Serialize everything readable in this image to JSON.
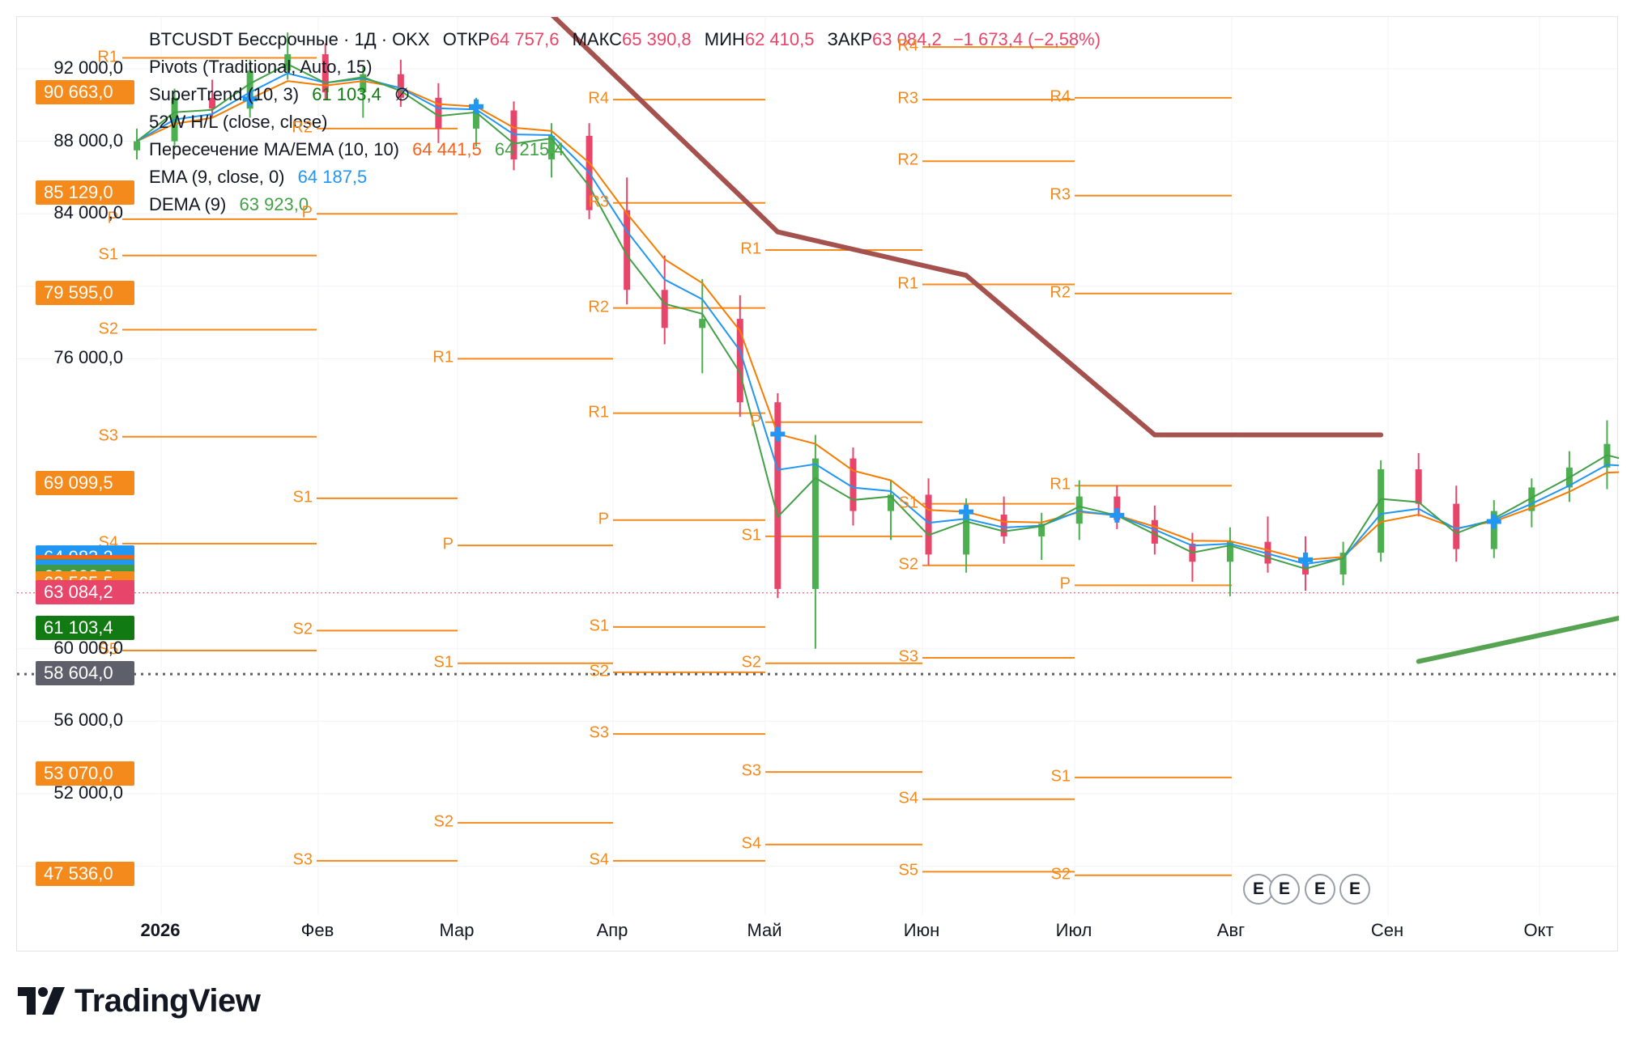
{
  "legend": {
    "symbol": "BTCUSDT Бессрочные · 1Д · OKX",
    "open_label": "ОТКР",
    "open_value": "64 757,6",
    "high_label": "МАКС",
    "high_value": "65 390,8",
    "low_label": "МИН",
    "low_value": "62 410,5",
    "close_label": "ЗАКР",
    "close_value": "63 084,2",
    "change": "−1 673,4 (−2,58%)",
    "pivots": "Pivots (Traditional, Auto, 15)",
    "supertrend": "SuperTrend (10, 3)",
    "supertrend_value": "61 103,4",
    "supertrend_extra": "∅",
    "hl52": "52W H/L (close, close)",
    "cross": "Пересечение MA/EMA (10, 10)",
    "cross_v1": "64 441,5",
    "cross_v2": "64 215,4",
    "ema": "EMA (9, close, 0)",
    "ema_value": "64 187,5",
    "dema": "DEMA (9)",
    "dema_value": "63 923,0"
  },
  "colors": {
    "up": "#4caf50",
    "down": "#e8456b",
    "pivot": "#f48a1c",
    "supertrend_up": "#56a352",
    "supertrend_down": "#a5524f",
    "ema": "#2196f3",
    "dema": "#43a047",
    "ma_cross": "#f57c00",
    "cross_marker": "#2196f3",
    "text": "#131722"
  },
  "chart_data": {
    "type": "candlestick",
    "symbol": "BTCUSDT",
    "timeframe": "1D",
    "ylim": [
      46000,
      94000
    ],
    "y_ticks": [
      "92 000,0",
      "88 000,0",
      "84 000,0",
      "76 000,0",
      "60 000,0",
      "56 000,0",
      "52 000,0"
    ],
    "x_ticks": [
      "2026",
      "Фев",
      "Мар",
      "Апр",
      "Май",
      "Июн",
      "Июл",
      "Авг",
      "Сен",
      "Окт"
    ],
    "price_tags": [
      {
        "label": "90 663,0",
        "value": 90663,
        "color": "#f48a1c"
      },
      {
        "label": "85 129,0",
        "value": 85129,
        "color": "#f48a1c"
      },
      {
        "label": "79 595,0",
        "value": 79595,
        "color": "#f48a1c"
      },
      {
        "label": "69 099,5",
        "value": 69099.5,
        "color": "#f48a1c"
      },
      {
        "label": "64 983,2",
        "value": 64983.2,
        "color": "#2196f3"
      },
      {
        "label": "64 441,5",
        "value": 64441.5,
        "color": "#f4621c"
      },
      {
        "label": "64 215,4",
        "value": 64215.4,
        "color": "#43a047"
      },
      {
        "label": "64 187,5",
        "value": 64187.5,
        "color": "#2196f3"
      },
      {
        "label": "63 923,0",
        "value": 63923,
        "color": "#3f9a45"
      },
      {
        "label": "63 565,5",
        "value": 63565.5,
        "color": "#f48a1c"
      },
      {
        "label": "63 084,2",
        "value": 63084.2,
        "color": "#e8456b"
      },
      {
        "label": "61 103,4",
        "value": 61103.4,
        "color": "#127a12"
      },
      {
        "label": "58 604,0",
        "value": 58604,
        "color": "#5d606b"
      },
      {
        "label": "53 070,0",
        "value": 53070,
        "color": "#f48a1c"
      },
      {
        "label": "47 536,0",
        "value": 47536,
        "color": "#f48a1c"
      }
    ],
    "last_close": 63084.2,
    "low_52w": 58604,
    "pivot_periods": [
      {
        "month": "Янв",
        "levels": [
          {
            "name": "R1",
            "value": 92600
          },
          {
            "name": "P",
            "value": 83700
          },
          {
            "name": "S1",
            "value": 81700
          },
          {
            "name": "S2",
            "value": 77600
          },
          {
            "name": "S3",
            "value": 71700
          },
          {
            "name": "S4",
            "value": 65800
          },
          {
            "name": "S5",
            "value": 59900
          }
        ]
      },
      {
        "month": "Фев",
        "levels": [
          {
            "name": "R2",
            "value": 88700
          },
          {
            "name": "P",
            "value": 84000
          },
          {
            "name": "S1",
            "value": 68300
          },
          {
            "name": "S2",
            "value": 61000
          },
          {
            "name": "S3",
            "value": 48300
          }
        ]
      },
      {
        "month": "Мар",
        "levels": [
          {
            "name": "R1",
            "value": 76000
          },
          {
            "name": "P",
            "value": 65700
          },
          {
            "name": "S1",
            "value": 59200
          },
          {
            "name": "S2",
            "value": 50400
          }
        ]
      },
      {
        "month": "Апр",
        "levels": [
          {
            "name": "R4",
            "value": 90300
          },
          {
            "name": "R3",
            "value": 84600
          },
          {
            "name": "R2",
            "value": 78800
          },
          {
            "name": "R1",
            "value": 73000
          },
          {
            "name": "P",
            "value": 67100
          },
          {
            "name": "S1",
            "value": 61200
          },
          {
            "name": "S2",
            "value": 58700
          },
          {
            "name": "S3",
            "value": 55300
          },
          {
            "name": "S4",
            "value": 48300
          }
        ]
      },
      {
        "month": "Май",
        "levels": [
          {
            "name": "R1",
            "value": 82000
          },
          {
            "name": "P",
            "value": 72500
          },
          {
            "name": "S1",
            "value": 66200
          },
          {
            "name": "S2",
            "value": 59200
          },
          {
            "name": "S3",
            "value": 53200
          },
          {
            "name": "S4",
            "value": 49200
          }
        ]
      },
      {
        "month": "Июн",
        "levels": [
          {
            "name": "R4",
            "value": 93200
          },
          {
            "name": "R3",
            "value": 90300
          },
          {
            "name": "R2",
            "value": 86900
          },
          {
            "name": "R1",
            "value": 80100
          },
          {
            "name": "S1",
            "value": 68000
          },
          {
            "name": "S2",
            "value": 64600
          },
          {
            "name": "S3",
            "value": 59500
          },
          {
            "name": "S4",
            "value": 51700
          },
          {
            "name": "S5",
            "value": 47700
          }
        ]
      },
      {
        "month": "Июл",
        "levels": [
          {
            "name": "R4",
            "value": 90400
          },
          {
            "name": "R3",
            "value": 85000
          },
          {
            "name": "R2",
            "value": 79600
          },
          {
            "name": "R1",
            "value": 69000
          },
          {
            "name": "P",
            "value": 63500
          },
          {
            "name": "S1",
            "value": 52900
          },
          {
            "name": "S2",
            "value": 47500
          }
        ]
      }
    ],
    "candles": [
      [
        87500,
        88700,
        87000,
        88000
      ],
      [
        88000,
        90900,
        87600,
        90400
      ],
      [
        90400,
        91400,
        89300,
        89800
      ],
      [
        89800,
        92500,
        89300,
        91900
      ],
      [
        91900,
        94000,
        91400,
        92800
      ],
      [
        92800,
        93400,
        90300,
        90700
      ],
      [
        90700,
        92100,
        89300,
        91700
      ],
      [
        91700,
        92500,
        89900,
        90400
      ],
      [
        90400,
        91200,
        87900,
        88700
      ],
      [
        88700,
        90400,
        87700,
        89700
      ],
      [
        89700,
        90200,
        86400,
        87000
      ],
      [
        87000,
        89000,
        86000,
        88300
      ],
      [
        88300,
        89000,
        83700,
        84200
      ],
      [
        84200,
        86000,
        79000,
        79800
      ],
      [
        79800,
        81700,
        76800,
        77700
      ],
      [
        77700,
        80400,
        75200,
        78200
      ],
      [
        78200,
        79500,
        72800,
        73600
      ],
      [
        73600,
        74100,
        62800,
        63300
      ],
      [
        63300,
        71800,
        60000,
        70500
      ],
      [
        70500,
        71100,
        66800,
        67600
      ],
      [
        67600,
        69300,
        66000,
        68500
      ],
      [
        68500,
        69400,
        64600,
        65200
      ],
      [
        65200,
        68300,
        64200,
        67400
      ],
      [
        67400,
        68400,
        65800,
        66200
      ],
      [
        66200,
        67500,
        64900,
        66900
      ],
      [
        66900,
        69300,
        66000,
        68400
      ],
      [
        68400,
        69000,
        66600,
        67100
      ],
      [
        67100,
        67900,
        65200,
        65800
      ],
      [
        65800,
        66400,
        63700,
        64800
      ],
      [
        64800,
        66700,
        62900,
        65900
      ],
      [
        65900,
        67300,
        64200,
        64700
      ],
      [
        64700,
        66200,
        63200,
        64100
      ],
      [
        64100,
        65900,
        63500,
        65300
      ],
      [
        65300,
        70400,
        64800,
        69900
      ],
      [
        69900,
        70800,
        67300,
        68000
      ],
      [
        68000,
        69000,
        64800,
        65500
      ],
      [
        65500,
        68200,
        65000,
        67600
      ],
      [
        67600,
        69400,
        66700,
        68900
      ],
      [
        68900,
        70900,
        68100,
        70000
      ],
      [
        70000,
        72600,
        68800,
        71300
      ],
      [
        71300,
        73200,
        69300,
        69900
      ],
      [
        69900,
        70400,
        66800,
        67500
      ],
      [
        67500,
        70000,
        66500,
        69200
      ],
      [
        69200,
        71100,
        68300,
        70400
      ],
      [
        70400,
        71300,
        67300,
        67900
      ],
      [
        67900,
        68600,
        65300,
        66200
      ],
      [
        66200,
        66900,
        63900,
        64500
      ],
      [
        64500,
        65900,
        63400,
        65200
      ],
      [
        65200,
        67800,
        64700,
        67100
      ],
      [
        67100,
        68300,
        65600,
        66100
      ],
      [
        66100,
        67400,
        65100,
        66800
      ],
      [
        66800,
        69200,
        66300,
        68600
      ],
      [
        68600,
        70900,
        68000,
        70200
      ],
      [
        70200,
        72400,
        69600,
        71700
      ],
      [
        71700,
        73400,
        70400,
        72700
      ],
      [
        72700,
        75600,
        72100,
        75100
      ],
      [
        75100,
        77300,
        73700,
        74300
      ],
      [
        74300,
        76100,
        73000,
        75400
      ],
      [
        75400,
        76800,
        72800,
        73800
      ],
      [
        73800,
        76100,
        73200,
        75500
      ],
      [
        75500,
        78400,
        75000,
        77800
      ],
      [
        77800,
        80300,
        77100,
        79600
      ],
      [
        79600,
        81500,
        78000,
        78600
      ],
      [
        78600,
        82600,
        78100,
        81800
      ],
      [
        81800,
        82500,
        79700,
        80300
      ],
      [
        80300,
        81100,
        77300,
        78000
      ],
      [
        78000,
        78900,
        75400,
        76300
      ],
      [
        76300,
        77700,
        75200,
        77100
      ],
      [
        77100,
        78500,
        75900,
        76800
      ],
      [
        76800,
        78100,
        74300,
        75000
      ],
      [
        75000,
        76700,
        73900,
        76200
      ],
      [
        76200,
        77100,
        72400,
        73100
      ],
      [
        73100,
        73900,
        69600,
        70400
      ],
      [
        70400,
        71000,
        66700,
        67800
      ],
      [
        67800,
        68600,
        63400,
        64200
      ],
      [
        64200,
        65700,
        60700,
        61500
      ],
      [
        61500,
        63900,
        60300,
        62900
      ],
      [
        62900,
        64800,
        61200,
        63800
      ],
      [
        63800,
        65600,
        62600,
        64900
      ],
      [
        64900,
        66200,
        63100,
        63700
      ],
      [
        63700,
        64600,
        61900,
        62500
      ],
      [
        62500,
        64400,
        61700,
        63600
      ],
      [
        63600,
        64700,
        62500,
        64000
      ],
      [
        64000,
        64600,
        61900,
        62600
      ],
      [
        62600,
        63300,
        59500,
        60100
      ],
      [
        60100,
        61500,
        58300,
        60900
      ],
      [
        60900,
        62800,
        60200,
        62200
      ],
      [
        62200,
        63900,
        61500,
        63100
      ],
      [
        63100,
        64400,
        62300,
        63700
      ],
      [
        63700,
        64600,
        62700,
        63200
      ],
      [
        63200,
        64900,
        62900,
        64300
      ],
      [
        64300,
        66100,
        63600,
        65400
      ],
      [
        65400,
        66500,
        64200,
        64600
      ],
      [
        64600,
        65300,
        63700,
        64100
      ],
      [
        64100,
        65700,
        63600,
        65200
      ],
      [
        65200,
        65900,
        64100,
        64800
      ],
      [
        64800,
        65400,
        62400,
        63100
      ]
    ],
    "supertrend": [
      {
        "i": 0,
        "value": 95000,
        "dir": "down"
      },
      {
        "i": 11,
        "value": 95000,
        "dir": "down"
      },
      {
        "i": 17,
        "value": 83000,
        "dir": "down"
      },
      {
        "i": 22,
        "value": 80600,
        "dir": "down"
      },
      {
        "i": 27,
        "value": 71800,
        "dir": "down"
      },
      {
        "i": 33,
        "value": 71800,
        "dir": "down"
      },
      {
        "i": 34,
        "value": 59300,
        "dir": "up"
      },
      {
        "i": 40,
        "value": 62000,
        "dir": "up"
      },
      {
        "i": 46,
        "value": 62000,
        "dir": "up"
      },
      {
        "i": 47,
        "value": 67600,
        "dir": "down"
      },
      {
        "i": 52,
        "value": 67600,
        "dir": "down"
      },
      {
        "i": 53,
        "value": 65200,
        "dir": "up"
      },
      {
        "i": 58,
        "value": 69000,
        "dir": "up"
      },
      {
        "i": 63,
        "value": 72000,
        "dir": "up"
      },
      {
        "i": 71,
        "value": 72000,
        "dir": "up"
      },
      {
        "i": 72,
        "value": 80600,
        "dir": "down"
      },
      {
        "i": 75,
        "value": 67500,
        "dir": "down"
      },
      {
        "i": 84,
        "value": 64700,
        "dir": "down"
      },
      {
        "i": 94,
        "value": 64700,
        "dir": "down"
      },
      {
        "i": 95,
        "value": 61100,
        "dir": "up"
      },
      {
        "i": 97,
        "value": 61100,
        "dir": "up"
      }
    ]
  }
}
